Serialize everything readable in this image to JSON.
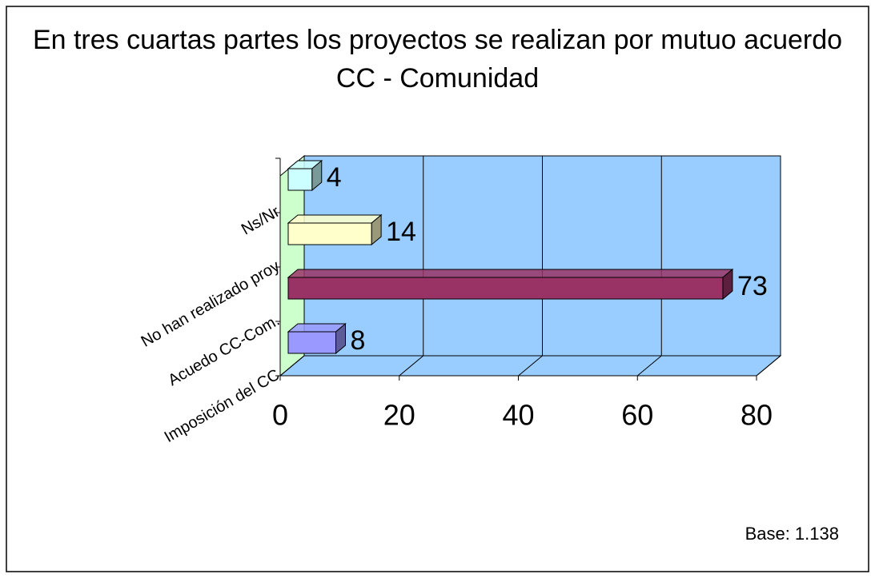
{
  "chart_data": {
    "type": "bar3d_horizontal",
    "title": "En tres cuartas partes los proyectos se realizan por mutuo acuerdo CC - Comunidad",
    "categories": [
      "Imposición del CC",
      "Acuedo CC-Com.",
      "No han realizado proy",
      "Ns/Nr"
    ],
    "series": [
      {
        "name": "%",
        "values": [
          8,
          73,
          14,
          4
        ],
        "colors": [
          "#9999ff",
          "#993366",
          "#ffffcc",
          "#ccffff"
        ]
      }
    ],
    "xlim": [
      0,
      80
    ],
    "xticks": [
      0,
      20,
      40,
      60,
      80
    ],
    "grid": true,
    "note": "Base: 1.138"
  }
}
